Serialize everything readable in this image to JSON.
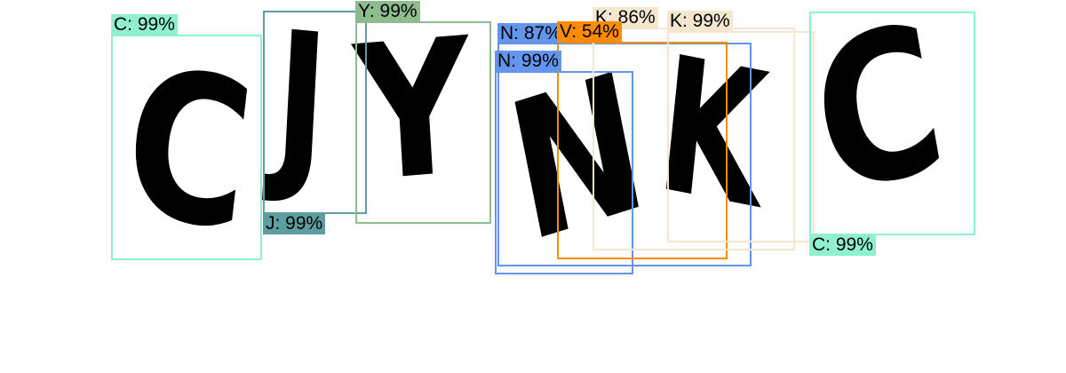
{
  "captcha": {
    "letters": [
      "C",
      "J",
      "Y",
      "N",
      "K",
      "C"
    ]
  },
  "detections": [
    {
      "label": "C: 99%",
      "color": "#8ef0d0"
    },
    {
      "label": "J: 99%",
      "color": "#5f9ea0"
    },
    {
      "label": "Y: 99%",
      "color": "#8fbc8f"
    },
    {
      "label": "N: 87%",
      "color": "#6495ed"
    },
    {
      "label": "N: 99%",
      "color": "#6495ed"
    },
    {
      "label": "V: 54%",
      "color": "#ff8c00"
    },
    {
      "label": "K: 86%",
      "color": "#f5e6d0"
    },
    {
      "label": "K: 99%",
      "color": "#f5e6d0"
    },
    {
      "label": "C: 99%",
      "color": "#8ef0d0"
    }
  ]
}
